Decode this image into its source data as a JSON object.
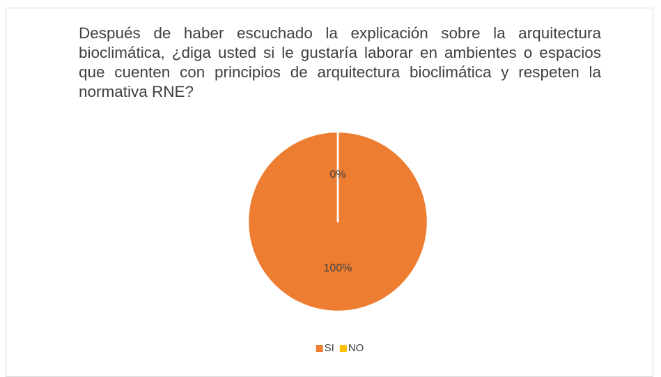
{
  "chart_data": {
    "type": "pie",
    "title": "Después de haber escuchado la explicación sobre la arquitectura bioclimática, ¿diga usted si le gustaría laborar en ambientes o espacios que cuenten con principios de arquitectura bioclimática y respeten la normativa RNE?",
    "categories": [
      "SI",
      "NO"
    ],
    "values": [
      100,
      0
    ],
    "value_labels": [
      "100%",
      "0%"
    ],
    "colors": [
      "#ed7d31",
      "#ffc000"
    ],
    "legend": "bottom"
  }
}
